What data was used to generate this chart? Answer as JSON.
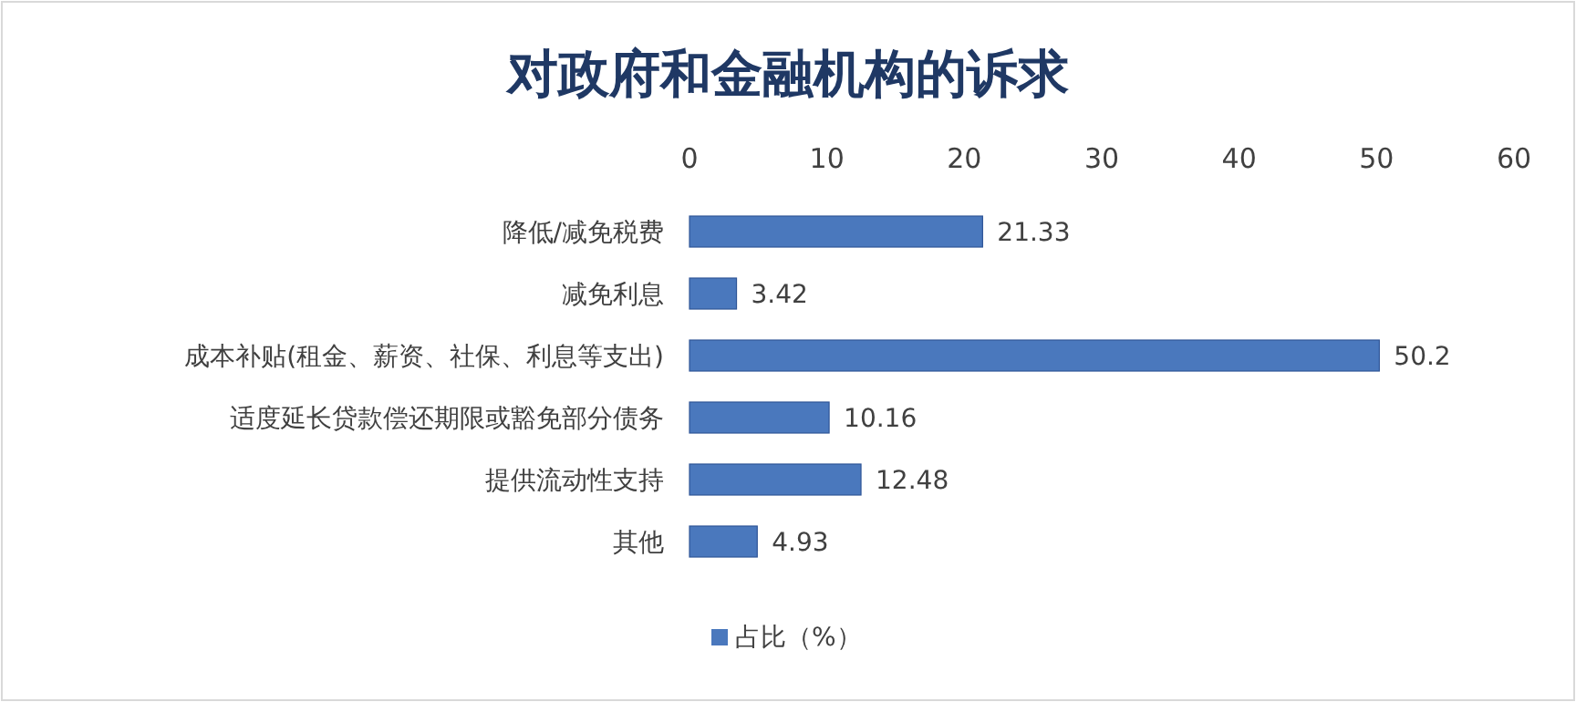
{
  "chart_data": {
    "type": "bar",
    "orientation": "horizontal",
    "title": "对政府和金融机构的诉求",
    "categories": [
      "降低/减免税费",
      "减免利息",
      "成本补贴(租金、薪资、社保、利息等支出)",
      "适度延长贷款偿还期限或豁免部分债务",
      "提供流动性支持",
      "其他"
    ],
    "series": [
      {
        "name": "占比（%）",
        "color": "#4a78bd",
        "values": [
          21.33,
          3.42,
          50.2,
          10.16,
          12.48,
          4.93
        ]
      }
    ],
    "xlim": [
      0,
      60
    ],
    "xticks": [
      0,
      10,
      20,
      30,
      40,
      50,
      60
    ],
    "data_labels": true,
    "legend": "bottom"
  }
}
